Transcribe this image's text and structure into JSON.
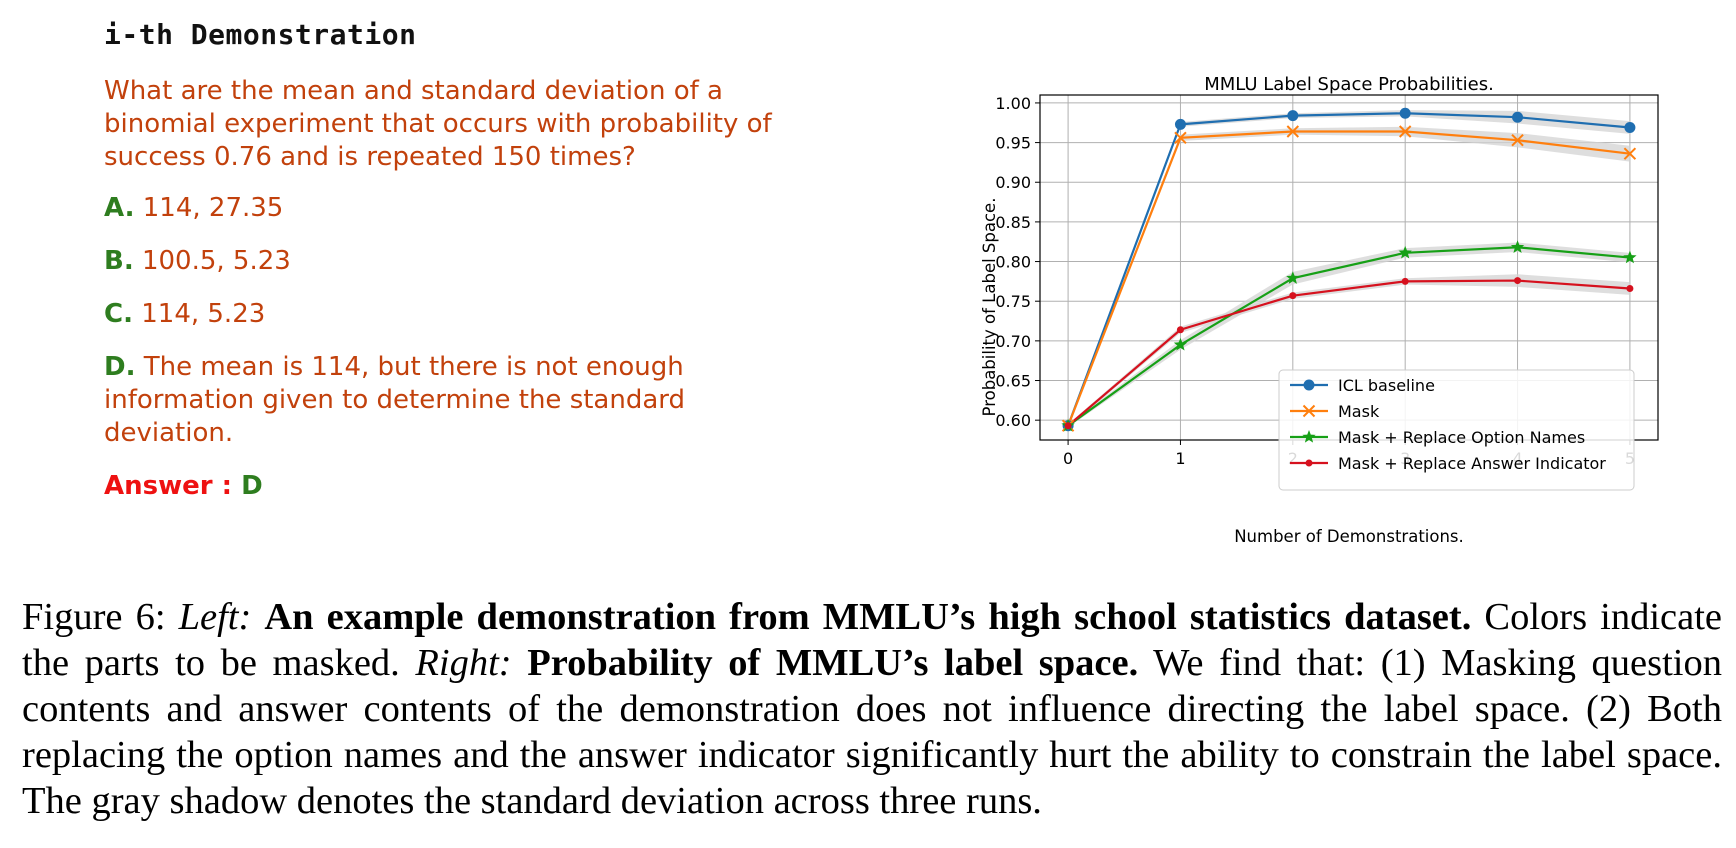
{
  "demo": {
    "heading": "i-th Demonstration",
    "question": "What are the mean and standard deviation of a binomial experiment that occurs with probability of success 0.76 and is repeated 150 times?",
    "options": [
      {
        "letter": "A.",
        "text": " 114, 27.35"
      },
      {
        "letter": "B.",
        "text": " 100.5, 5.23"
      },
      {
        "letter": "C.",
        "text": " 114, 5.23"
      },
      {
        "letter": "D.",
        "text": " The mean is 114, but there is not enough information given to determine the standard deviation."
      }
    ],
    "answer_label": "Answer : ",
    "answer_value": "D"
  },
  "colors": {
    "question_text": "#c2410c",
    "option_letter": "#2e7d1f",
    "answer_label": "#ee1111",
    "icl_baseline": "#1f6eb0",
    "mask": "#ff7f0e",
    "replace_option_names": "#16a016",
    "replace_answer_indicator": "#d6111e",
    "std_shadow": "#d3d3d3"
  },
  "chart_data": {
    "type": "line",
    "title": "MMLU Label Space Probabilities.",
    "xlabel": "Number of Demonstrations.",
    "ylabel": "Probability of Label Space.",
    "x": [
      0,
      1,
      2,
      3,
      4,
      5
    ],
    "xlim": [
      -0.25,
      5.25
    ],
    "ylim": [
      0.575,
      1.01
    ],
    "yticks": [
      0.6,
      0.65,
      0.7,
      0.75,
      0.8,
      0.85,
      0.9,
      0.95,
      1.0
    ],
    "ytick_labels": [
      "0.60",
      "0.65",
      "0.70",
      "0.75",
      "0.80",
      "0.85",
      "0.90",
      "0.95",
      "1.00"
    ],
    "xtick_labels": [
      "0",
      "1",
      "2",
      "3",
      "4",
      "5"
    ],
    "grid": true,
    "legend_position": "lower-right",
    "series": [
      {
        "name": "ICL baseline",
        "marker": "circle",
        "color": "#1f6eb0",
        "values": [
          0.593,
          0.973,
          0.984,
          0.987,
          0.982,
          0.969
        ],
        "std": [
          0.002,
          0.003,
          0.003,
          0.004,
          0.008,
          0.008
        ]
      },
      {
        "name": "Mask",
        "marker": "x",
        "color": "#ff7f0e",
        "values": [
          0.593,
          0.956,
          0.964,
          0.964,
          0.953,
          0.936
        ],
        "std": [
          0.002,
          0.004,
          0.004,
          0.006,
          0.009,
          0.01
        ]
      },
      {
        "name": "Mask + Replace Option Names",
        "marker": "star",
        "color": "#16a016",
        "values": [
          0.593,
          0.695,
          0.779,
          0.811,
          0.818,
          0.805
        ],
        "std": [
          0.002,
          0.006,
          0.008,
          0.006,
          0.006,
          0.006
        ]
      },
      {
        "name": "Mask + Replace Answer Indicator",
        "marker": "dot",
        "color": "#d6111e",
        "values": [
          0.593,
          0.714,
          0.757,
          0.775,
          0.776,
          0.766
        ],
        "std": [
          0.002,
          0.004,
          0.004,
          0.004,
          0.008,
          0.008
        ]
      }
    ]
  },
  "caption": {
    "fig_label": "Figure 6: ",
    "left_label": "Left:",
    "left_title": "An example demonstration from MMLU’s high school statistics dataset.",
    "left_text": " Colors indicate the parts to be masked. ",
    "right_label": "Right:",
    "right_title": "Probability of MMLU’s label space.",
    "right_text": "  We find that: (1) Masking question contents and answer contents of the demonstration does not influence directing the label space. (2) Both replacing the option names and the answer indicator significantly hurt the ability to constrain the label space. The gray shadow denotes the standard deviation across three runs."
  }
}
